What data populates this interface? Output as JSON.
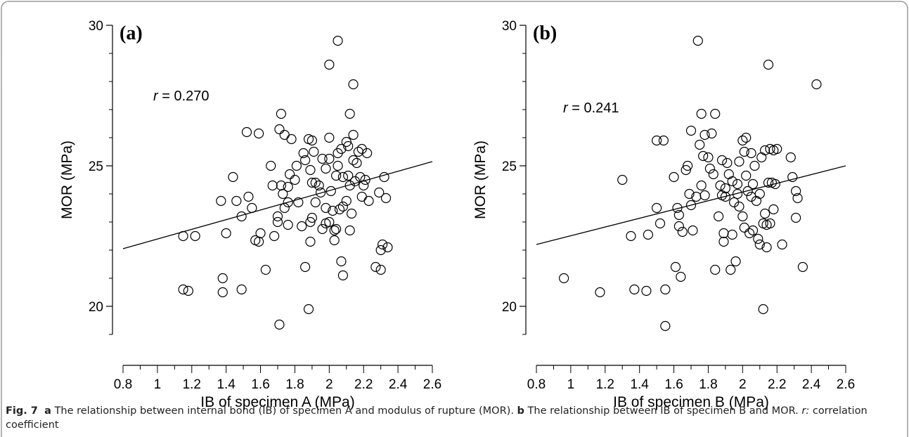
{
  "caption": {
    "fig_label": "Fig. 7",
    "a_letter": "a",
    "a_text": " The relationship between internal bond (IB) of specimen A and modulus of rupture (MOR). ",
    "b_letter": "b",
    "b_text": " The relationship between IB of specimen B and MOR. ",
    "r_symbol": "r:",
    "r_text": " correlation coefficient"
  },
  "chart_data": [
    {
      "type": "scatter",
      "panel_label": "(a)",
      "xlabel": "IB of specimen A (MPa)",
      "ylabel": "MOR (MPa)",
      "xlim": [
        0.8,
        2.6
      ],
      "ylim": [
        19,
        30
      ],
      "xticks": [
        "0.8",
        "1",
        "1.2",
        "1.4",
        "1.6",
        "1.8",
        "2",
        "2.2",
        "2.4",
        "2.6"
      ],
      "yticks": [
        "20",
        "25",
        "30"
      ],
      "annotation": {
        "symbol": "r",
        "text": " = 0.270"
      },
      "trendline": [
        [
          0.8,
          22.05
        ],
        [
          2.6,
          25.15
        ]
      ],
      "points": [
        [
          1.15,
          22.5
        ],
        [
          1.22,
          22.5
        ],
        [
          1.15,
          20.6
        ],
        [
          1.18,
          20.55
        ],
        [
          1.37,
          23.75
        ],
        [
          1.38,
          21.0
        ],
        [
          1.38,
          20.5
        ],
        [
          1.4,
          22.6
        ],
        [
          1.44,
          24.6
        ],
        [
          1.46,
          23.75
        ],
        [
          1.49,
          23.2
        ],
        [
          1.49,
          20.6
        ],
        [
          1.52,
          26.2
        ],
        [
          1.53,
          23.9
        ],
        [
          1.55,
          23.5
        ],
        [
          1.57,
          22.35
        ],
        [
          1.59,
          26.15
        ],
        [
          1.59,
          22.3
        ],
        [
          1.6,
          22.6
        ],
        [
          1.63,
          21.3
        ],
        [
          1.66,
          25.0
        ],
        [
          1.67,
          24.3
        ],
        [
          1.68,
          22.5
        ],
        [
          1.7,
          23.2
        ],
        [
          1.7,
          23.0
        ],
        [
          1.71,
          19.35
        ],
        [
          1.71,
          26.3
        ],
        [
          1.72,
          26.85
        ],
        [
          1.72,
          24.3
        ],
        [
          1.73,
          24.0
        ],
        [
          1.74,
          23.5
        ],
        [
          1.74,
          26.1
        ],
        [
          1.76,
          24.25
        ],
        [
          1.76,
          23.7
        ],
        [
          1.77,
          24.7
        ],
        [
          1.76,
          22.9
        ],
        [
          1.78,
          25.95
        ],
        [
          1.8,
          24.5
        ],
        [
          1.81,
          25.0
        ],
        [
          1.82,
          23.7
        ],
        [
          1.84,
          22.85
        ],
        [
          1.85,
          25.45
        ],
        [
          1.86,
          21.4
        ],
        [
          1.86,
          25.2
        ],
        [
          1.88,
          25.95
        ],
        [
          1.89,
          24.85
        ],
        [
          1.9,
          25.9
        ],
        [
          1.9,
          24.4
        ],
        [
          1.89,
          23.0
        ],
        [
          1.89,
          22.3
        ],
        [
          1.88,
          19.9
        ],
        [
          1.9,
          23.15
        ],
        [
          1.91,
          25.5
        ],
        [
          1.92,
          24.4
        ],
        [
          1.92,
          23.7
        ],
        [
          1.94,
          24.3
        ],
        [
          1.95,
          24.05
        ],
        [
          1.96,
          25.25
        ],
        [
          1.96,
          22.75
        ],
        [
          1.98,
          23.5
        ],
        [
          1.98,
          24.9
        ],
        [
          1.98,
          22.95
        ],
        [
          2.0,
          25.25
        ],
        [
          2.0,
          23.0
        ],
        [
          2.0,
          28.6
        ],
        [
          2.01,
          24.1
        ],
        [
          2.02,
          23.4
        ],
        [
          2.03,
          22.7
        ],
        [
          2.03,
          22.35
        ],
        [
          2.04,
          24.65
        ],
        [
          2.04,
          22.75
        ],
        [
          2.05,
          29.45
        ],
        [
          2.05,
          25.45
        ],
        [
          2.05,
          25.0
        ],
        [
          2.06,
          23.45
        ],
        [
          2.07,
          21.6
        ],
        [
          2.08,
          24.6
        ],
        [
          2.08,
          23.55
        ],
        [
          2.08,
          21.1
        ],
        [
          2.1,
          25.85
        ],
        [
          2.1,
          23.75
        ],
        [
          2.11,
          25.7
        ],
        [
          2.11,
          24.65
        ],
        [
          2.12,
          26.85
        ],
        [
          2.12,
          24.3
        ],
        [
          2.12,
          22.7
        ],
        [
          2.14,
          27.9
        ],
        [
          2.14,
          26.1
        ],
        [
          2.14,
          25.2
        ],
        [
          2.15,
          24.45
        ],
        [
          2.16,
          25.1
        ],
        [
          2.17,
          25.5
        ],
        [
          2.18,
          24.6
        ],
        [
          2.19,
          23.9
        ],
        [
          2.19,
          25.6
        ],
        [
          2.2,
          24.3
        ],
        [
          2.21,
          24.5
        ],
        [
          2.22,
          25.45
        ],
        [
          2.23,
          23.75
        ],
        [
          2.27,
          21.4
        ],
        [
          2.29,
          24.05
        ],
        [
          2.3,
          22.0
        ],
        [
          2.3,
          21.3
        ],
        [
          2.31,
          22.2
        ],
        [
          2.32,
          24.6
        ],
        [
          2.33,
          23.85
        ],
        [
          2.34,
          22.1
        ],
        [
          2.0,
          26.0
        ],
        [
          2.07,
          25.6
        ],
        [
          2.13,
          23.3
        ]
      ]
    },
    {
      "type": "scatter",
      "panel_label": "(b)",
      "xlabel": "IB of specimen B (MPa)",
      "ylabel": "MOR (MPa)",
      "xlim": [
        0.8,
        2.6
      ],
      "ylim": [
        19,
        30
      ],
      "xticks": [
        "0.8",
        "1",
        "1.2",
        "1.4",
        "1.6",
        "1.8",
        "2",
        "2.2",
        "2.4",
        "2.6"
      ],
      "yticks": [
        "20",
        "25",
        "30"
      ],
      "annotation": {
        "symbol": "r",
        "text": " = 0.241"
      },
      "trendline": [
        [
          0.8,
          22.2
        ],
        [
          2.6,
          25.0
        ]
      ],
      "points": [
        [
          0.96,
          21.0
        ],
        [
          1.17,
          20.5
        ],
        [
          1.3,
          24.5
        ],
        [
          1.35,
          22.5
        ],
        [
          1.37,
          20.6
        ],
        [
          1.44,
          20.55
        ],
        [
          1.45,
          22.55
        ],
        [
          1.5,
          25.9
        ],
        [
          1.5,
          23.5
        ],
        [
          1.52,
          22.95
        ],
        [
          1.54,
          25.9
        ],
        [
          1.55,
          20.6
        ],
        [
          1.55,
          19.3
        ],
        [
          1.6,
          24.6
        ],
        [
          1.61,
          21.4
        ],
        [
          1.62,
          23.5
        ],
        [
          1.63,
          23.25
        ],
        [
          1.63,
          22.85
        ],
        [
          1.64,
          21.05
        ],
        [
          1.65,
          22.65
        ],
        [
          1.67,
          24.85
        ],
        [
          1.68,
          25.0
        ],
        [
          1.69,
          24.0
        ],
        [
          1.7,
          26.25
        ],
        [
          1.7,
          23.6
        ],
        [
          1.71,
          22.7
        ],
        [
          1.73,
          23.9
        ],
        [
          1.74,
          29.45
        ],
        [
          1.75,
          25.75
        ],
        [
          1.76,
          26.85
        ],
        [
          1.76,
          24.3
        ],
        [
          1.77,
          25.35
        ],
        [
          1.78,
          26.1
        ],
        [
          1.78,
          23.95
        ],
        [
          1.8,
          25.3
        ],
        [
          1.81,
          24.9
        ],
        [
          1.82,
          26.15
        ],
        [
          1.83,
          24.7
        ],
        [
          1.84,
          26.85
        ],
        [
          1.84,
          21.3
        ],
        [
          1.86,
          23.2
        ],
        [
          1.87,
          24.3
        ],
        [
          1.88,
          25.2
        ],
        [
          1.88,
          23.95
        ],
        [
          1.89,
          22.6
        ],
        [
          1.89,
          22.3
        ],
        [
          1.9,
          24.2
        ],
        [
          1.9,
          23.9
        ],
        [
          1.91,
          25.1
        ],
        [
          1.92,
          24.7
        ],
        [
          1.93,
          21.3
        ],
        [
          1.94,
          22.55
        ],
        [
          1.94,
          24.45
        ],
        [
          1.95,
          23.7
        ],
        [
          1.96,
          21.6
        ],
        [
          1.97,
          24.0
        ],
        [
          1.97,
          24.35
        ],
        [
          1.98,
          25.15
        ],
        [
          1.98,
          23.55
        ],
        [
          2.0,
          25.9
        ],
        [
          2.0,
          23.2
        ],
        [
          2.01,
          25.5
        ],
        [
          2.01,
          22.8
        ],
        [
          2.02,
          24.65
        ],
        [
          2.03,
          24.1
        ],
        [
          2.04,
          22.6
        ],
        [
          2.05,
          25.45
        ],
        [
          2.05,
          23.9
        ],
        [
          2.06,
          24.35
        ],
        [
          2.06,
          22.7
        ],
        [
          2.07,
          25.0
        ],
        [
          2.08,
          23.75
        ],
        [
          2.09,
          22.4
        ],
        [
          2.1,
          24.0
        ],
        [
          2.1,
          22.2
        ],
        [
          2.11,
          25.3
        ],
        [
          2.12,
          22.95
        ],
        [
          2.12,
          19.9
        ],
        [
          2.13,
          25.55
        ],
        [
          2.13,
          23.3
        ],
        [
          2.14,
          22.9
        ],
        [
          2.15,
          28.6
        ],
        [
          2.15,
          24.4
        ],
        [
          2.16,
          25.6
        ],
        [
          2.16,
          22.95
        ],
        [
          2.17,
          24.4
        ],
        [
          2.18,
          25.55
        ],
        [
          2.18,
          23.45
        ],
        [
          2.19,
          24.35
        ],
        [
          2.2,
          25.6
        ],
        [
          2.23,
          22.2
        ],
        [
          2.28,
          25.3
        ],
        [
          2.29,
          24.6
        ],
        [
          2.31,
          24.1
        ],
        [
          2.31,
          23.15
        ],
        [
          2.32,
          23.85
        ],
        [
          2.35,
          21.4
        ],
        [
          2.43,
          27.9
        ],
        [
          2.14,
          22.1
        ],
        [
          2.02,
          26.0
        ]
      ]
    }
  ]
}
